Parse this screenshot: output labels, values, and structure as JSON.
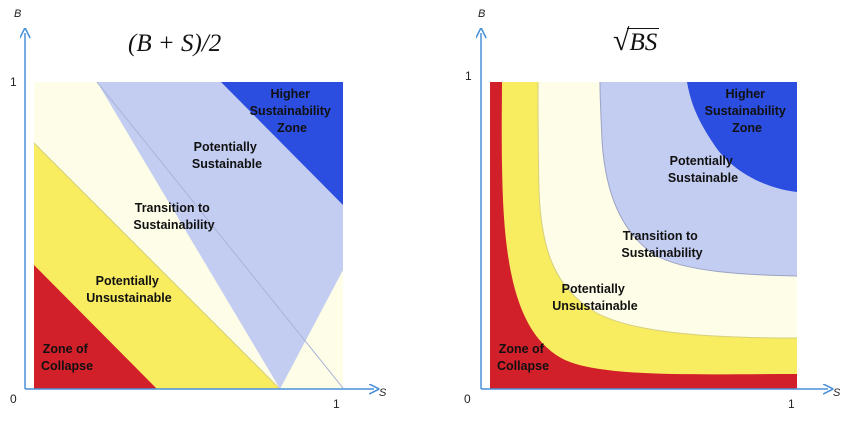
{
  "colors": {
    "collapse": "#d2202a",
    "unsustainable": "#f8ec60",
    "transition": "#fdfde8",
    "sustainable": "#c3cdf1",
    "higher": "#2b4de0",
    "axis": "#4a90d9"
  },
  "left": {
    "formula": "(B + S)/2",
    "axis": {
      "y_label": "B",
      "x_label": "S",
      "origin": "0",
      "x_tick": "1",
      "y_tick": "1"
    },
    "zones": {
      "higher": [
        "Higher",
        "Sustainability",
        "Zone"
      ],
      "sustainable": [
        "Potentially",
        "Sustainable"
      ],
      "transition": [
        "Transition to",
        "Sustainability"
      ],
      "unsustainable": [
        "Potentially",
        "Unsustainable"
      ],
      "collapse": [
        "Zone of",
        "Collapse"
      ]
    }
  },
  "right": {
    "formula": "BS",
    "axis": {
      "y_label": "B",
      "x_label": "S",
      "origin": "0",
      "x_tick": "1",
      "y_tick": "1"
    },
    "zones": {
      "higher": [
        "Higher",
        "Sustainability",
        "Zone"
      ],
      "sustainable": [
        "Potentially",
        "Sustainable"
      ],
      "transition": [
        "Transition to",
        "Sustainability"
      ],
      "unsustainable": [
        "Potentially",
        "Unsustainable"
      ],
      "collapse": [
        "Zone of",
        "Collapse"
      ]
    }
  }
}
